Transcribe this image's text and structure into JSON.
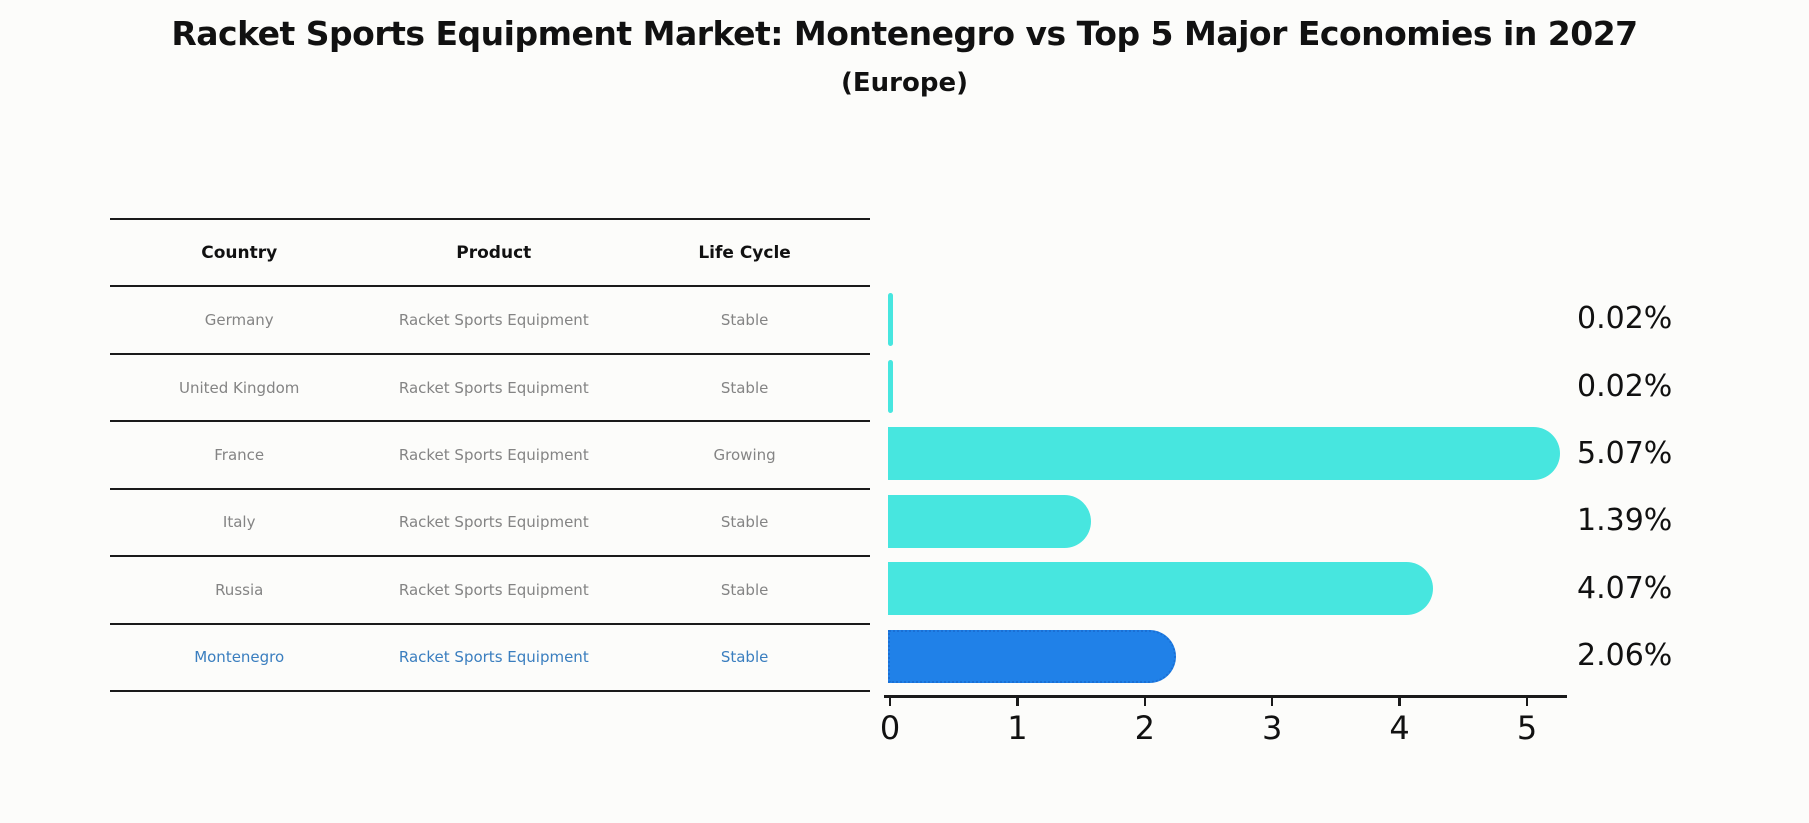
{
  "title": "Racket Sports Equipment Market: Montenegro vs Top 5 Major Economies in 2027",
  "subtitle": "(Europe)",
  "table": {
    "headers": [
      "Country",
      "Product",
      "Life Cycle"
    ],
    "rows": [
      {
        "country": "Germany",
        "product": "Racket Sports Equipment",
        "life_cycle": "Stable",
        "highlight": false
      },
      {
        "country": "United Kingdom",
        "product": "Racket Sports Equipment",
        "life_cycle": "Stable",
        "highlight": false
      },
      {
        "country": "France",
        "product": "Racket Sports Equipment",
        "life_cycle": "Growing",
        "highlight": false
      },
      {
        "country": "Italy",
        "product": "Racket Sports Equipment",
        "life_cycle": "Stable",
        "highlight": false
      },
      {
        "country": "Russia",
        "product": "Racket Sports Equipment",
        "life_cycle": "Stable",
        "highlight": false
      },
      {
        "country": "Montenegro",
        "product": "Racket Sports Equipment",
        "life_cycle": "Stable",
        "highlight": true
      }
    ]
  },
  "chart_data": {
    "type": "bar",
    "orientation": "horizontal",
    "title": "Racket Sports Equipment Market: Montenegro vs Top 5 Major Economies in 2027 (Europe)",
    "categories": [
      "Germany",
      "United Kingdom",
      "France",
      "Italy",
      "Russia",
      "Montenegro"
    ],
    "values": [
      0.02,
      0.02,
      5.07,
      1.39,
      4.07,
      2.06
    ],
    "value_labels": [
      "0.02%",
      "0.02%",
      "5.07%",
      "1.39%",
      "4.07%",
      "2.06%"
    ],
    "xlim": [
      0,
      5.35
    ],
    "xticks": [
      0,
      1,
      2,
      3,
      4,
      5
    ],
    "grid": false,
    "legend": false,
    "highlight_index": 5
  },
  "colors": {
    "background": "#fcfcfa",
    "bar": "#47e6df",
    "highlight_bar": "#2081e8",
    "highlight_text": "#3a7ebf",
    "cell_text": "#848484",
    "header_text": "#111111",
    "axis": "#1a1a1a"
  }
}
